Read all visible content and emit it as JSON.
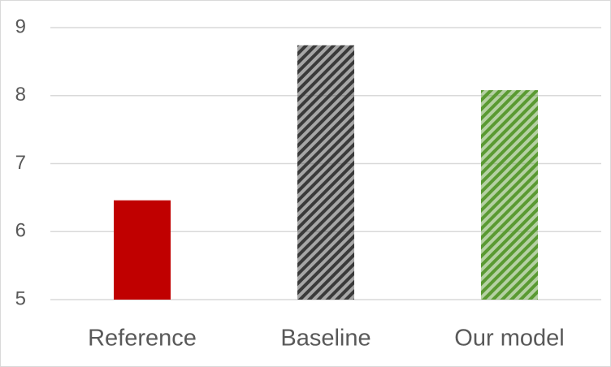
{
  "chart_data": {
    "type": "bar",
    "categories": [
      "Reference",
      "Baseline",
      "Our model"
    ],
    "values": [
      6.46,
      8.74,
      8.08
    ],
    "colors": [
      "#c00000",
      "#3a3a3a",
      "#5a9a32"
    ],
    "hatch": [
      false,
      true,
      true
    ],
    "ylim": [
      5,
      9
    ],
    "yticks": [
      5,
      6,
      7,
      8,
      9
    ],
    "grid": true
  }
}
